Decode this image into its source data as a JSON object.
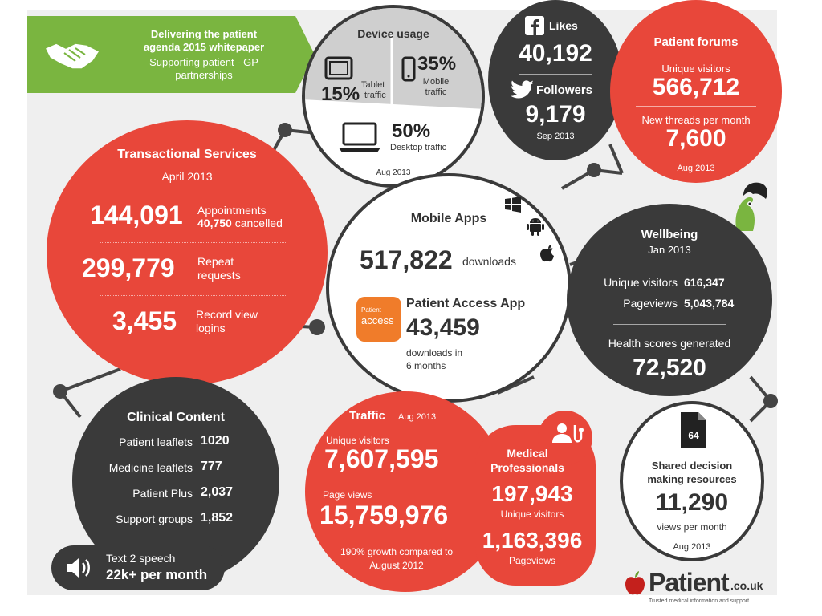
{
  "banner": {
    "title_line1": "Delivering the patient",
    "title_line2": "agenda 2015 whitepaper",
    "subtitle_line1": "Supporting patient - GP",
    "subtitle_line2": "partnerships",
    "icon": "handshake-icon"
  },
  "device_usage": {
    "title": "Device usage",
    "tablet_pct": "15%",
    "tablet_label1": "Tablet",
    "tablet_label2": "traffic",
    "mobile_pct": "35%",
    "mobile_label1": "Mobile",
    "mobile_label2": "traffic",
    "desktop_pct": "50%",
    "desktop_label": "Desktop traffic",
    "date": "Aug 2013"
  },
  "social": {
    "likes_label": "Likes",
    "likes": "40,192",
    "followers_label": "Followers",
    "followers": "9,179",
    "date": "Sep 2013"
  },
  "forums": {
    "title": "Patient forums",
    "visitors_label": "Unique visitors",
    "visitors": "566,712",
    "threads_label": "New threads per month",
    "threads": "7,600",
    "date": "Aug 2013"
  },
  "transactional": {
    "title": "Transactional Services",
    "date": "April 2013",
    "appointments": "144,091",
    "appointments_label": "Appointments",
    "cancelled": "40,750",
    "cancelled_label": "cancelled",
    "repeat": "299,779",
    "repeat_label1": "Repeat",
    "repeat_label2": "requests",
    "record": "3,455",
    "record_label1": "Record view",
    "record_label2": "logins"
  },
  "mobile_apps": {
    "title": "Mobile Apps",
    "downloads": "517,822",
    "downloads_label": "downloads",
    "app_title": "Patient Access App",
    "app_downloads": "43,459",
    "app_label1": "downloads in",
    "app_label2": "6 months",
    "app_icon_text1": "Patient",
    "app_icon_text2": "access"
  },
  "wellbeing": {
    "title": "Wellbeing",
    "date": "Jan 2013",
    "visitors_label": "Unique visitors",
    "visitors": "616,347",
    "pageviews_label": "Pageviews",
    "pageviews": "5,043,784",
    "scores_label": "Health scores generated",
    "scores": "72,520"
  },
  "clinical": {
    "title": "Clinical Content",
    "rows": [
      {
        "label": "Patient leaflets",
        "value": "1020"
      },
      {
        "label": "Medicine leaflets",
        "value": "777"
      },
      {
        "label": "Patient Plus",
        "value": "2,037"
      },
      {
        "label": "Support groups",
        "value": "1,852"
      }
    ],
    "speech_label": "Text 2 speech",
    "speech_value": "22k+ per month"
  },
  "traffic": {
    "title": "Traffic",
    "date": "Aug 2013",
    "visitors_label": "Unique visitors",
    "visitors": "7,607,595",
    "pageviews_label": "Page views",
    "pageviews": "15,759,976",
    "growth_line1": "190% growth compared to",
    "growth_line2": "August 2012"
  },
  "medical": {
    "title_line1": "Medical",
    "title_line2": "Professionals",
    "visitors": "197,943",
    "visitors_label": "Unique visitors",
    "pageviews": "1,163,396",
    "pageviews_label": "Pageviews"
  },
  "shared": {
    "doc_number": "64",
    "title_line1": "Shared decision",
    "title_line2": "making resources",
    "views": "11,290",
    "views_label": "views per month",
    "date": "Aug 2013"
  },
  "logo": {
    "name": "Patient",
    "suffix": ".co.uk",
    "tagline": "Trusted medical information and support"
  },
  "colors": {
    "red": "#e8473a",
    "dark": "#3a3a3a",
    "green": "#7ab540"
  }
}
